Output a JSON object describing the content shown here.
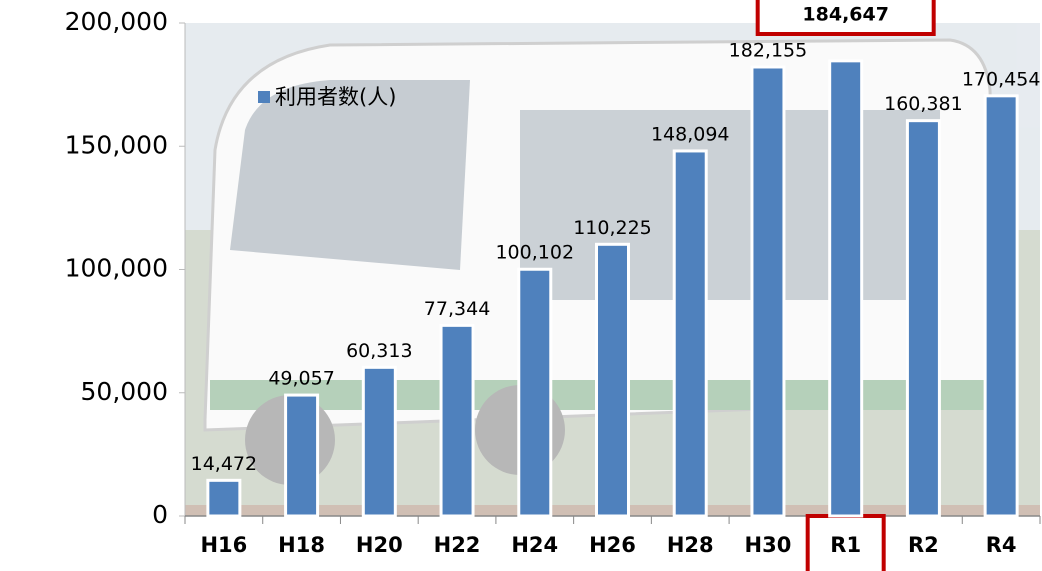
{
  "chart_data": {
    "type": "bar",
    "categories": [
      "H16",
      "H18",
      "H20",
      "H22",
      "H24",
      "H26",
      "H28",
      "H30",
      "R1",
      "R2",
      "R4"
    ],
    "series": [
      {
        "name": "利用者数(人)",
        "color": "#4f81bd",
        "values": [
          14472,
          49057,
          60313,
          77344,
          100102,
          110225,
          148094,
          182155,
          184647,
          160381,
          170454
        ],
        "value_labels": [
          "14,472",
          "49,057",
          "60,313",
          "77,344",
          "100,102",
          "110,225",
          "148,094",
          "182,155",
          "184,647",
          "160,381",
          "170,454"
        ]
      }
    ],
    "ylim": [
      0,
      200000
    ],
    "yticks": [
      0,
      {
        "value": 50000,
        "label": "50,000"
      },
      {
        "value": 100000,
        "label": "100,000"
      },
      {
        "value": 150000,
        "label": "150,000"
      },
      {
        "value": 200000,
        "label": "200,000"
      }
    ],
    "highlight_category": "R1",
    "highlight_color": "#c00000",
    "legend": "upper-left"
  }
}
